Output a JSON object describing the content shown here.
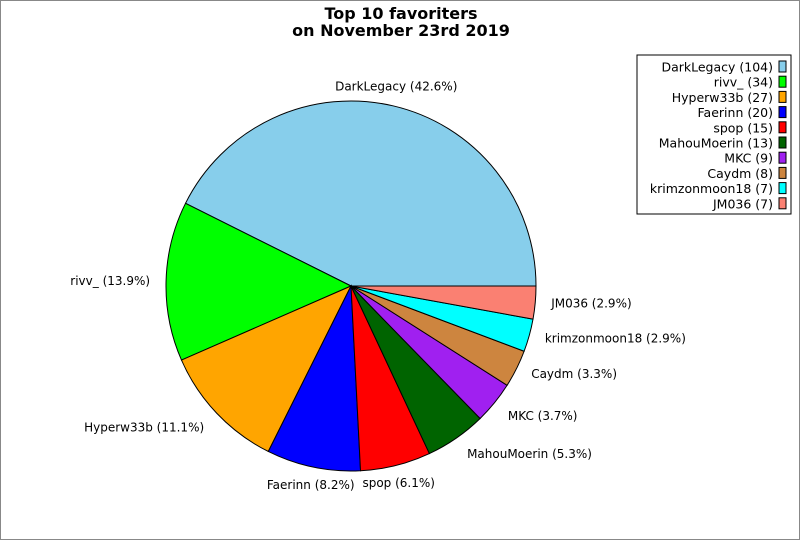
{
  "chart_data": {
    "type": "pie",
    "title": [
      "Top 10 favoriters",
      "on November 23rd 2019"
    ],
    "categories": [
      "DarkLegacy",
      "rivv_",
      "Hyperw33b",
      "Faerinn",
      "spop",
      "MahouMoerin",
      "MKC",
      "Caydm",
      "krimzonmoon18",
      "JM036"
    ],
    "values": [
      104,
      34,
      27,
      20,
      15,
      13,
      9,
      8,
      7,
      7
    ],
    "slice_labels": [
      "DarkLegacy (42.6%)",
      "rivv_ (13.9%)",
      "Hyperw33b (11.1%)",
      "Faerinn (8.2%)",
      "spop (6.1%)",
      "MahouMoerin (5.3%)",
      "MKC (3.7%)",
      "Caydm (3.3%)",
      "krimzonmoon18 (2.9%)",
      "JM036 (2.9%)"
    ],
    "legend_labels": [
      "DarkLegacy (104)",
      "rivv_ (34)",
      "Hyperw33b (27)",
      "Faerinn (20)",
      "spop (15)",
      "MahouMoerin (13)",
      "MKC (9)",
      "Caydm (8)",
      "krimzonmoon18 (7)",
      "JM036 (7)"
    ],
    "colors": [
      "#87ceeb",
      "#00ff00",
      "#ffa500",
      "#0000ff",
      "#ff0000",
      "#006400",
      "#a020f0",
      "#cd853f",
      "#00ffff",
      "#fa8072"
    ],
    "start_angle": "3 o'clock",
    "direction": "counterclockwise",
    "legend_position": "top-right"
  }
}
